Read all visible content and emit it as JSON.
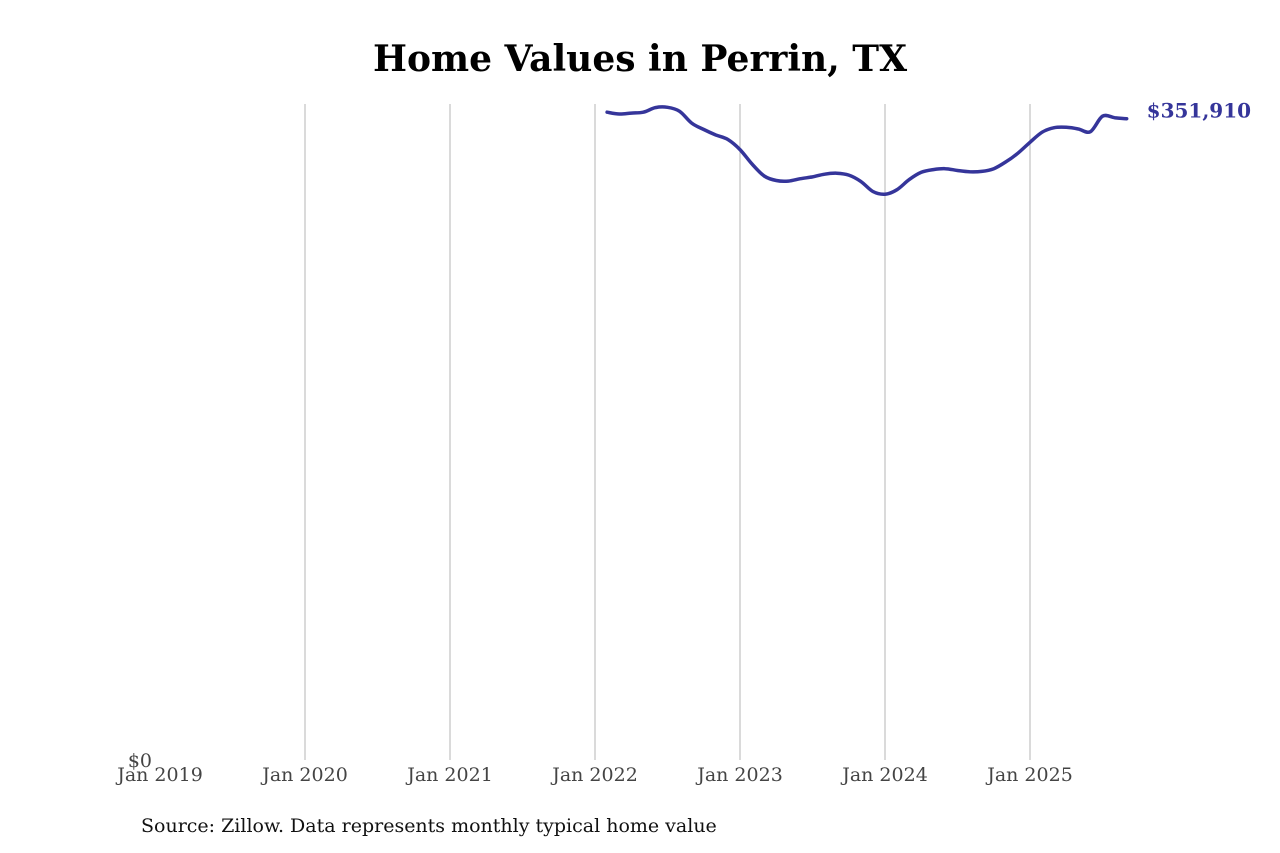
{
  "chart_data": {
    "type": "line",
    "title": "Home Values in Perrin, TX",
    "xlabel": "",
    "ylabel": "",
    "x_ticks": [
      "Jan 2019",
      "Jan 2020",
      "Jan 2021",
      "Jan 2022",
      "Jan 2023",
      "Jan 2024",
      "Jan 2025"
    ],
    "y_tick_label": "$0",
    "ylim": [
      0,
      360000
    ],
    "grid": "vertical",
    "end_label": "$351,910",
    "line_color": "#35359a",
    "series": [
      {
        "x": [
          "2022-02",
          "2022-03",
          "2022-04",
          "2022-05",
          "2022-06",
          "2022-07",
          "2022-08",
          "2022-09",
          "2022-10",
          "2022-11",
          "2022-12",
          "2023-01",
          "2023-02",
          "2023-03",
          "2023-04",
          "2023-05",
          "2023-06",
          "2023-07",
          "2023-08",
          "2023-09",
          "2023-10",
          "2023-11",
          "2023-12",
          "2024-01",
          "2024-02",
          "2024-03",
          "2024-04",
          "2024-05",
          "2024-06",
          "2024-07",
          "2024-08",
          "2024-09",
          "2024-10",
          "2024-11",
          "2024-12",
          "2025-01",
          "2025-02",
          "2025-03",
          "2025-04",
          "2025-05",
          "2025-06",
          "2025-07",
          "2025-08",
          "2025-09"
        ],
        "values": [
          355500,
          354500,
          355000,
          355500,
          358000,
          358200,
          356000,
          349500,
          346000,
          343000,
          340500,
          335000,
          327000,
          320500,
          318000,
          317700,
          319000,
          320000,
          321500,
          322000,
          321000,
          317500,
          312000,
          310500,
          313000,
          318500,
          322500,
          324000,
          324500,
          323500,
          322800,
          323000,
          324500,
          328200,
          333000,
          339000,
          344500,
          347000,
          347200,
          346300,
          344800,
          353300,
          352500,
          351910
        ]
      }
    ]
  },
  "source_text": "Source: Zillow. Data represents monthly typical home value"
}
